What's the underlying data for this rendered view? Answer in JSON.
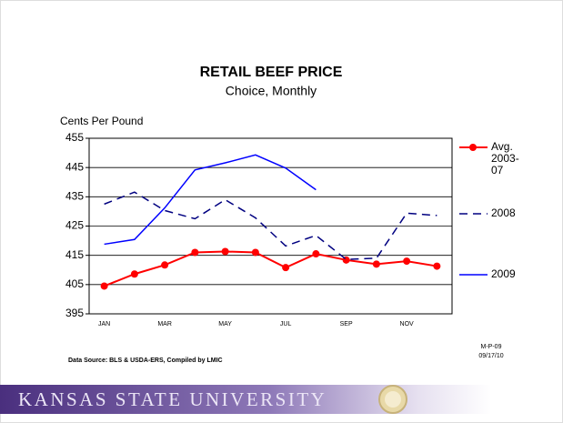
{
  "chart_data": {
    "type": "line",
    "title": "RETAIL BEEF PRICE",
    "subtitle": "Choice, Monthly",
    "y_label": "Cents Per Pound",
    "categories": [
      "JAN",
      null,
      "MAR",
      null,
      "MAY",
      null,
      "JUL",
      null,
      "SEP",
      null,
      "NOV",
      null
    ],
    "series": [
      {
        "name": "Avg. 2003-07",
        "color": "#ff0000",
        "marker": "circle",
        "dash": false,
        "values": [
          404.5,
          408.6,
          411.7,
          416,
          416.3,
          416,
          410.8,
          415.5,
          413.4,
          412,
          413,
          411.3
        ]
      },
      {
        "name": "2008",
        "color": "#000080",
        "marker": null,
        "dash": true,
        "values": [
          432.5,
          436.6,
          430.3,
          427.5,
          434,
          427.8,
          418.2,
          421.8,
          413.6,
          414,
          429.4,
          428.6
        ]
      },
      {
        "name": "2009",
        "color": "#0000ff",
        "marker": null,
        "dash": false,
        "values": [
          418.8,
          420.4,
          431.2,
          444.2,
          446.6,
          449.3,
          444.8,
          437.4,
          null,
          null,
          null,
          null
        ]
      }
    ],
    "ylim": [
      395,
      455
    ],
    "yticks": [
      395,
      405,
      415,
      425,
      435,
      445,
      455
    ],
    "grid": true,
    "legend": "right",
    "source": "Data Source:  BLS & USDA-ERS, Compiled by LMIC",
    "code": "M-P-09",
    "date": "09/17/10",
    "footer": "KANSAS STATE UNIVERSITY"
  }
}
